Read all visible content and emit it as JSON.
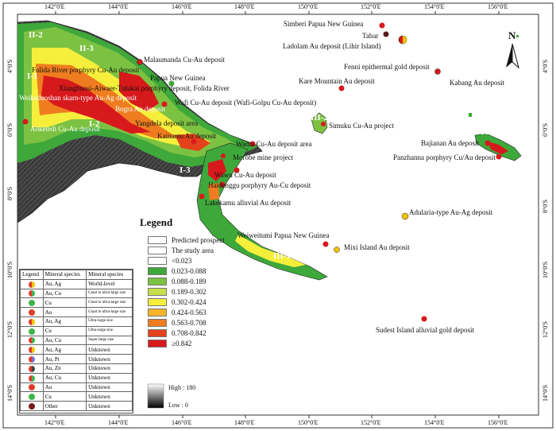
{
  "map": {
    "north_label": "N",
    "legend_title": "Legend",
    "lon_ticks": [
      "142°0'E",
      "144°0'E",
      "146°0'E",
      "148°0'E",
      "150°0'E",
      "152°0'E",
      "154°0'E",
      "156°0'E"
    ],
    "lat_ticks": [
      "4°0'S",
      "6°0'S",
      "8°0'S",
      "10°0'S",
      "12°0'S",
      "14°0'S"
    ],
    "regions": [
      "II-2",
      "II-3",
      "I-1",
      "I-2",
      "I-3",
      "III-1",
      "III-2",
      "III-2"
    ],
    "deposits": [
      {
        "label": "Simberi Papua New Guinea"
      },
      {
        "label": "Tabar"
      },
      {
        "label": "Ladolam Au deposit (Lihir Island)"
      },
      {
        "label": "Malaumanda Cu-Au deposit"
      },
      {
        "label": "Folida River porphyry Cu-Au deposit"
      },
      {
        "label": "Papua New Guinea"
      },
      {
        "label": "Xianghuosi-Aiwaer-Tulukai porphyry deposit, Folida River"
      },
      {
        "label": "Weikeduoshan skarn-type Au-Ag deposit"
      },
      {
        "label": "Bogra Au deposit"
      },
      {
        "label": "Wafi Cu-Au deposit (Wafi-Golpu Cu-Au deposit)"
      },
      {
        "label": "Aoketedi Cu-Au deposit"
      },
      {
        "label": "Yangdela deposit area"
      },
      {
        "label": "Kainantu Au deposit"
      },
      {
        "label": "Wamu Cu-Au deposit area"
      },
      {
        "label": "Morobe mine project"
      },
      {
        "label": "Wawu Cu-Au deposit"
      },
      {
        "label": "Haidenggu porphyry Au-Cu deposit"
      },
      {
        "label": "Lakekamu alluvial Au deposit"
      },
      {
        "label": "Kare Mountain Au deposit"
      },
      {
        "label": "Fenni epithermal gold deposit"
      },
      {
        "label": "Kabang Au deposit"
      },
      {
        "label": "Simuku Cu-Au project"
      },
      {
        "label": "Bajianan Au deposit"
      },
      {
        "label": "Panzhanna porphyry Cu/Au deposit"
      },
      {
        "label": "Adularia-type Au-Ag deposit"
      },
      {
        "label": "Weiweitumi Papua New Guinea"
      },
      {
        "label": "Mixi Island Au deposit"
      },
      {
        "label": "Sudest Island alluvial gold deposit"
      }
    ]
  },
  "symbol_legend": {
    "header": [
      "Legend",
      "Mineral species",
      "Mineral species"
    ],
    "rows": [
      {
        "minerals": "Au, Ag",
        "scale": "World-level",
        "color": "#e23b2a",
        "color2": "#f2c200"
      },
      {
        "minerals": "Au, Cu",
        "scale": "Giant to ultra-large size",
        "color": "#e23b2a",
        "color2": "#3fb44a"
      },
      {
        "minerals": "Cu",
        "scale": "Giant to ultra-large size",
        "color": "#3fb44a",
        "color2": "#3fb44a"
      },
      {
        "minerals": "Au",
        "scale": "Giant to ultra-large size",
        "color": "#e23b2a",
        "color2": "#e23b2a"
      },
      {
        "minerals": "Au, Ag",
        "scale": "Ultra-large size",
        "color": "#e23b2a",
        "color2": "#f2c200"
      },
      {
        "minerals": "Cu",
        "scale": "Ultra-large size",
        "color": "#3fb44a",
        "color2": "#3fb44a"
      },
      {
        "minerals": "Au, Cu",
        "scale": "Super-large size",
        "color": "#e23b2a",
        "color2": "#3fb44a"
      },
      {
        "minerals": "Au, Ag",
        "scale": "Unknown",
        "color": "#e23b2a",
        "color2": "#f2c200"
      },
      {
        "minerals": "Au, Pt",
        "scale": "Unknown",
        "color": "#e23b2a",
        "color2": "#7a6fd0"
      },
      {
        "minerals": "Au, Zn",
        "scale": "Unknown",
        "color": "#e23b2a",
        "color2": "#444444"
      },
      {
        "minerals": "Au, Cu",
        "scale": "Unknown",
        "color": "#e23b2a",
        "color2": "#3fb44a"
      },
      {
        "minerals": "Au",
        "scale": "Unknown",
        "color": "#e23b2a",
        "color2": "#e23b2a"
      },
      {
        "minerals": "Cu",
        "scale": "Unknown",
        "color": "#3fb44a",
        "color2": "#3fb44a"
      },
      {
        "minerals": "Other",
        "scale": "Unknown",
        "color": "#7a1a1a",
        "color2": "#7a1a1a"
      }
    ]
  },
  "class_legend": {
    "items": [
      {
        "label": "Predicted prospect",
        "color": "#ffffff"
      },
      {
        "label": "The study area",
        "color": "#ffffff"
      },
      {
        "label": "<0.023",
        "color": "#ffffff"
      },
      {
        "label": "0.023-0.088",
        "color": "#3ea83a"
      },
      {
        "label": "0.088-0.189",
        "color": "#7cc242"
      },
      {
        "label": "0.189-0.302",
        "color": "#c7e04a"
      },
      {
        "label": "0.302-0.424",
        "color": "#f5ef3c"
      },
      {
        "label": "0.424-0.563",
        "color": "#f6b52a"
      },
      {
        "label": "0.563-0.708",
        "color": "#ef7d1f"
      },
      {
        "label": "0.708-0.842",
        "color": "#e4421c"
      },
      {
        "label": "≥0.842",
        "color": "#d7191c"
      }
    ],
    "elevation_high": "High : 180",
    "elevation_low": "Low : 0"
  }
}
